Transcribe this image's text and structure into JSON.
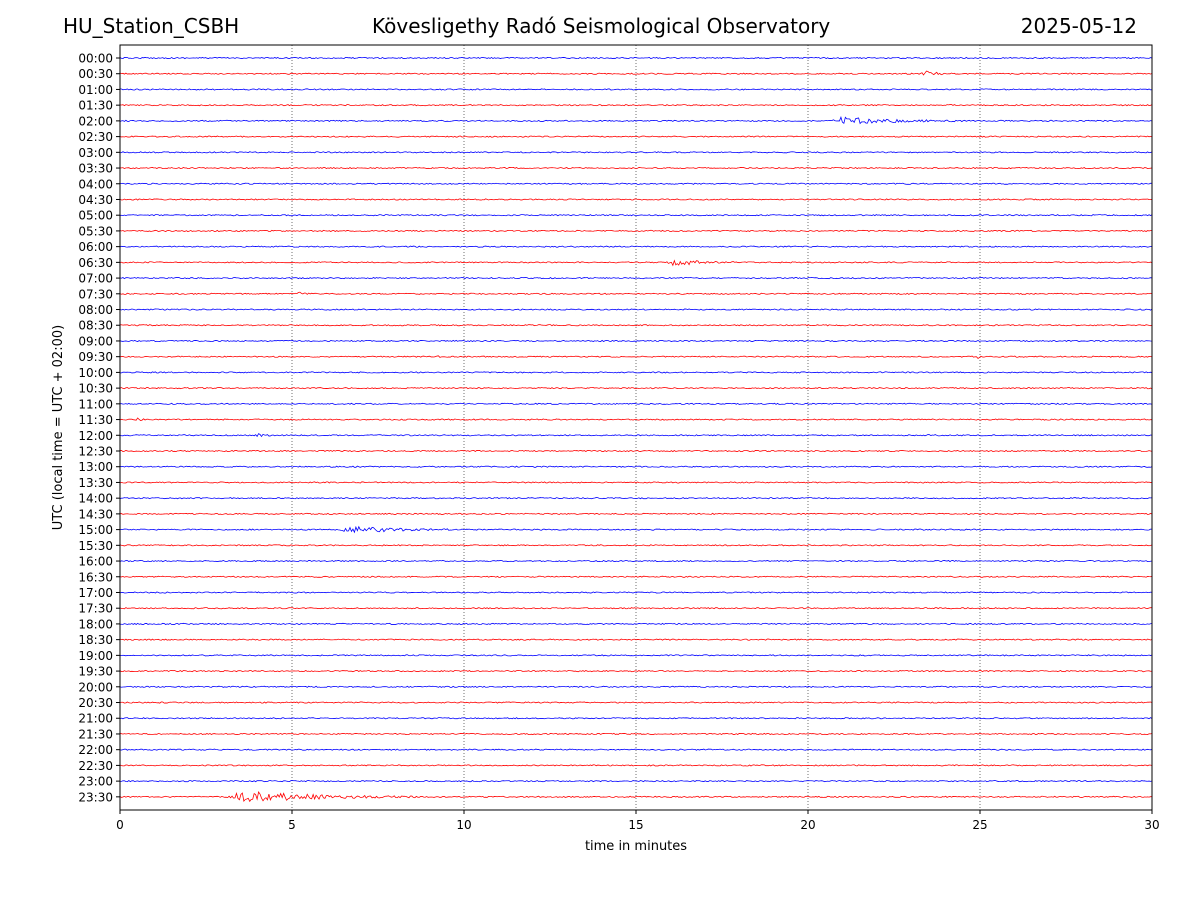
{
  "header": {
    "station": "HU_Station_CSBH",
    "title": "Kövesligethy Radó Seismological Observatory",
    "date": "2025-05-12"
  },
  "chart_data": {
    "type": "line",
    "title": "Kövesligethy Radó Seismological Observatory",
    "xlabel": "time in minutes",
    "ylabel": "UTC (local time = UTC + 02:00)",
    "xlim": [
      0,
      30
    ],
    "x_ticks": [
      0,
      5,
      10,
      15,
      20,
      25,
      30
    ],
    "grid": "vertical dotted at 5-minute ticks",
    "colors": [
      "#0000ff",
      "#ff0000"
    ],
    "rows": [
      "00:00",
      "00:30",
      "01:00",
      "01:30",
      "02:00",
      "02:30",
      "03:00",
      "03:30",
      "04:00",
      "04:30",
      "05:00",
      "05:30",
      "06:00",
      "06:30",
      "07:00",
      "07:30",
      "08:00",
      "08:30",
      "09:00",
      "09:30",
      "10:00",
      "10:30",
      "11:00",
      "11:30",
      "12:00",
      "12:30",
      "13:00",
      "13:30",
      "14:00",
      "14:30",
      "15:00",
      "15:30",
      "16:00",
      "16:30",
      "17:00",
      "17:30",
      "18:00",
      "18:30",
      "19:00",
      "19:30",
      "20:00",
      "20:30",
      "21:00",
      "21:30",
      "22:00",
      "22:30",
      "23:00",
      "23:30"
    ],
    "events": [
      {
        "row": 1,
        "start": 23.3,
        "end": 24.2,
        "amp": 3
      },
      {
        "row": 4,
        "start": 20.7,
        "end": 24.5,
        "amp": 4
      },
      {
        "row": 13,
        "start": 15.9,
        "end": 18.3,
        "amp": 3
      },
      {
        "row": 15,
        "start": 5.1,
        "end": 5.6,
        "amp": 2
      },
      {
        "row": 19,
        "start": 9.2,
        "end": 9.5,
        "amp": 2
      },
      {
        "row": 19,
        "start": 24.9,
        "end": 25.1,
        "amp": 2
      },
      {
        "row": 23,
        "start": 0.5,
        "end": 0.8,
        "amp": 2
      },
      {
        "row": 24,
        "start": 3.8,
        "end": 4.6,
        "amp": 2
      },
      {
        "row": 24,
        "start": 23.4,
        "end": 23.8,
        "amp": 2
      },
      {
        "row": 30,
        "start": 6.4,
        "end": 9.6,
        "amp": 4
      },
      {
        "row": 39,
        "start": 29.7,
        "end": 29.9,
        "amp": 2
      },
      {
        "row": 47,
        "start": 3.1,
        "end": 8.6,
        "amp": 6
      }
    ]
  }
}
